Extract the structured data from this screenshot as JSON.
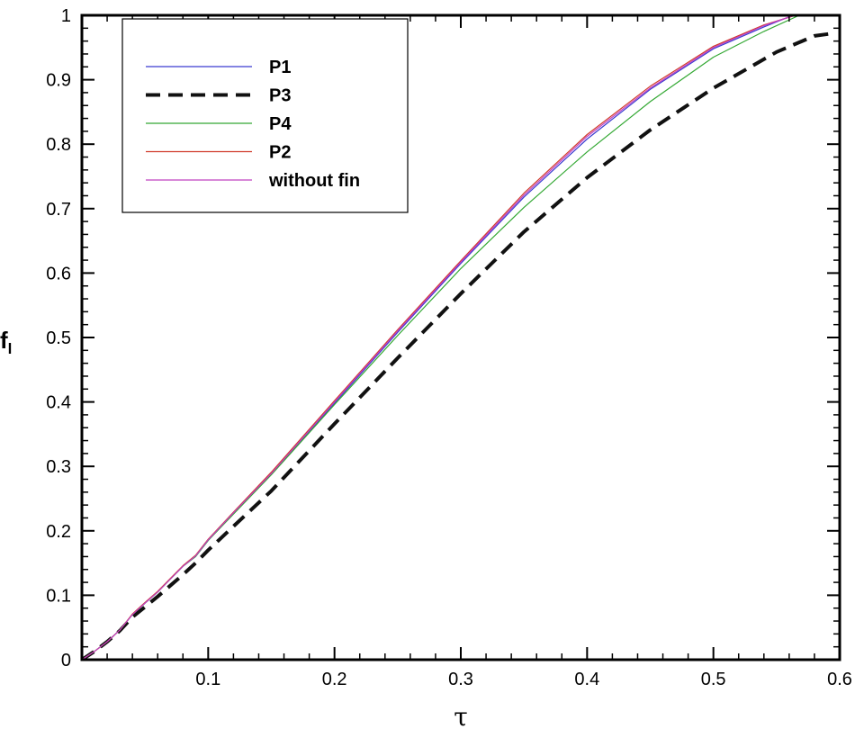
{
  "chart_data": {
    "type": "line",
    "xlabel": "τ",
    "ylabel": "f",
    "ylabel_subscript": "l",
    "xlim": [
      0,
      0.6
    ],
    "ylim": [
      0,
      1
    ],
    "xticks": [
      0.1,
      0.2,
      0.3,
      0.4,
      0.5,
      0.6
    ],
    "xtick_labels": [
      "0.1",
      "0.2",
      "0.3",
      "0.4",
      "0.5",
      "0.6"
    ],
    "yticks": [
      0,
      0.1,
      0.2,
      0.3,
      0.4,
      0.5,
      0.6,
      0.7,
      0.8,
      0.9,
      1
    ],
    "ytick_labels": [
      "0",
      "0.1",
      "0.2",
      "0.3",
      "0.4",
      "0.5",
      "0.6",
      "0.7",
      "0.8",
      "0.9",
      "1"
    ],
    "grid": false,
    "legend_position": "top-left",
    "series": [
      {
        "name": "P1",
        "color": "#3a3ad0",
        "dash": "solid",
        "x": [
          0,
          0.01,
          0.02,
          0.03,
          0.04,
          0.05,
          0.06,
          0.07,
          0.08,
          0.09,
          0.1,
          0.12,
          0.15,
          0.2,
          0.25,
          0.3,
          0.35,
          0.4,
          0.45,
          0.5,
          0.54,
          0.563
        ],
        "y": [
          0,
          0.013,
          0.028,
          0.046,
          0.07,
          0.088,
          0.105,
          0.125,
          0.145,
          0.16,
          0.185,
          0.227,
          0.288,
          0.398,
          0.508,
          0.615,
          0.718,
          0.808,
          0.885,
          0.948,
          0.982,
          1.0
        ]
      },
      {
        "name": "P3",
        "color": "#111111",
        "dash": "dashed",
        "x": [
          0,
          0.01,
          0.02,
          0.03,
          0.04,
          0.05,
          0.06,
          0.07,
          0.08,
          0.09,
          0.1,
          0.12,
          0.15,
          0.2,
          0.25,
          0.3,
          0.35,
          0.4,
          0.45,
          0.5,
          0.55,
          0.58,
          0.595
        ],
        "y": [
          0,
          0.013,
          0.028,
          0.045,
          0.066,
          0.082,
          0.098,
          0.115,
          0.132,
          0.15,
          0.17,
          0.207,
          0.262,
          0.366,
          0.468,
          0.568,
          0.664,
          0.748,
          0.822,
          0.887,
          0.943,
          0.968,
          0.972
        ]
      },
      {
        "name": "P4",
        "color": "#33a833",
        "dash": "solid",
        "x": [
          0,
          0.01,
          0.02,
          0.03,
          0.04,
          0.05,
          0.06,
          0.07,
          0.08,
          0.09,
          0.1,
          0.12,
          0.15,
          0.2,
          0.25,
          0.3,
          0.35,
          0.4,
          0.45,
          0.5,
          0.54,
          0.568
        ],
        "y": [
          0,
          0.013,
          0.028,
          0.046,
          0.07,
          0.088,
          0.105,
          0.125,
          0.145,
          0.16,
          0.185,
          0.226,
          0.287,
          0.396,
          0.503,
          0.607,
          0.702,
          0.788,
          0.866,
          0.935,
          0.975,
          1.0
        ]
      },
      {
        "name": "P2",
        "color": "#d03a2a",
        "dash": "solid",
        "x": [
          0,
          0.01,
          0.02,
          0.03,
          0.04,
          0.05,
          0.06,
          0.07,
          0.08,
          0.09,
          0.1,
          0.12,
          0.15,
          0.2,
          0.25,
          0.3,
          0.35,
          0.4,
          0.45,
          0.5,
          0.54,
          0.565
        ],
        "y": [
          0,
          0.013,
          0.028,
          0.046,
          0.071,
          0.089,
          0.106,
          0.126,
          0.146,
          0.162,
          0.187,
          0.229,
          0.291,
          0.402,
          0.512,
          0.619,
          0.724,
          0.815,
          0.89,
          0.952,
          0.985,
          1.0
        ]
      },
      {
        "name": "without fin",
        "color": "#c040c0",
        "dash": "solid",
        "x": [
          0,
          0.01,
          0.02,
          0.03,
          0.04,
          0.05,
          0.06,
          0.07,
          0.08,
          0.09,
          0.1,
          0.12,
          0.15,
          0.2,
          0.25,
          0.3,
          0.35,
          0.4,
          0.45,
          0.5,
          0.54,
          0.564
        ],
        "y": [
          0,
          0.013,
          0.028,
          0.046,
          0.07,
          0.088,
          0.105,
          0.125,
          0.145,
          0.161,
          0.186,
          0.228,
          0.289,
          0.4,
          0.51,
          0.617,
          0.721,
          0.812,
          0.887,
          0.95,
          0.984,
          1.0
        ]
      }
    ]
  }
}
